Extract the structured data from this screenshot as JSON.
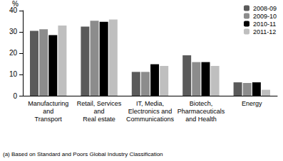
{
  "chart_data": {
    "type": "bar",
    "y_label": "%",
    "footnote": "(a) Based on Standard and Poors Global Industry Classification",
    "categories": [
      "Manufacturing\nand\nTransport",
      "Retail, Services\nand\nReal estate",
      "IT, Media,\nElectronics and\nCommunications",
      "Biotech,\nPharmaceuticals\nand Health",
      "Energy"
    ],
    "series": [
      {
        "name": "2008-09",
        "color": "#5a5a5a",
        "values": [
          30.5,
          32.5,
          11.2,
          19.0,
          6.3
        ]
      },
      {
        "name": "2009-10",
        "color": "#8c8c8c",
        "values": [
          31.2,
          35.2,
          11.2,
          15.8,
          6.0
        ]
      },
      {
        "name": "2010-11",
        "color": "#000000",
        "values": [
          28.5,
          34.7,
          14.8,
          15.8,
          6.3
        ]
      },
      {
        "name": "2011-12",
        "color": "#bfbfbf",
        "values": [
          33.0,
          35.8,
          14.0,
          14.0,
          2.8
        ]
      }
    ],
    "ylim": [
      0,
      40
    ],
    "yticks": [
      0,
      10,
      20,
      30,
      40
    ],
    "grid": false,
    "legend": "top-right"
  }
}
